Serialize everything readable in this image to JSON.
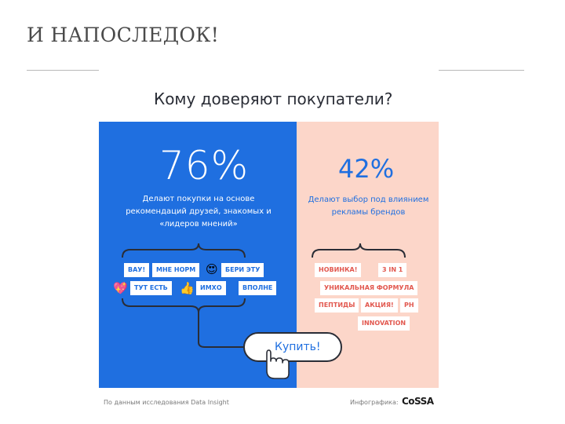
{
  "slide": {
    "title": "И НАПОСЛЕДОК!"
  },
  "infographic": {
    "question": "Кому доверяют покупатели?",
    "left": {
      "percent": "76%",
      "description": "Делают покупки на основе рекомендаций друзей, знакомых и «лидеров мнений»",
      "tags": [
        "ВАУ!",
        "МНЕ НОРМ",
        "БЕРИ ЭТУ",
        "ТУТ ЕСТЬ",
        "ИМХО",
        "ВПОЛНЕ"
      ],
      "emojis": [
        "heart-eyes-emoji",
        "sparkling-heart-emoji",
        "thumbs-up-emoji"
      ]
    },
    "right": {
      "percent": "42%",
      "description": "Делают выбор под влиянием рекламы брендов",
      "tags": [
        "НОВИНКА!",
        "3 IN 1",
        "УНИКАЛЬНАЯ ФОРМУЛА",
        "ПЕПТИДЫ",
        "АКЦИЯ!",
        "PH",
        "INNOVATION"
      ]
    },
    "buy_label": "Купить!",
    "footer_source": "По данным исследования Data Insight",
    "footer_credit": "Инфографика:",
    "logo_text": "CoSSA"
  },
  "colors": {
    "blue": "#1f6fe0",
    "pink": "#fcd6c9",
    "tag_red": "#e2584f"
  }
}
